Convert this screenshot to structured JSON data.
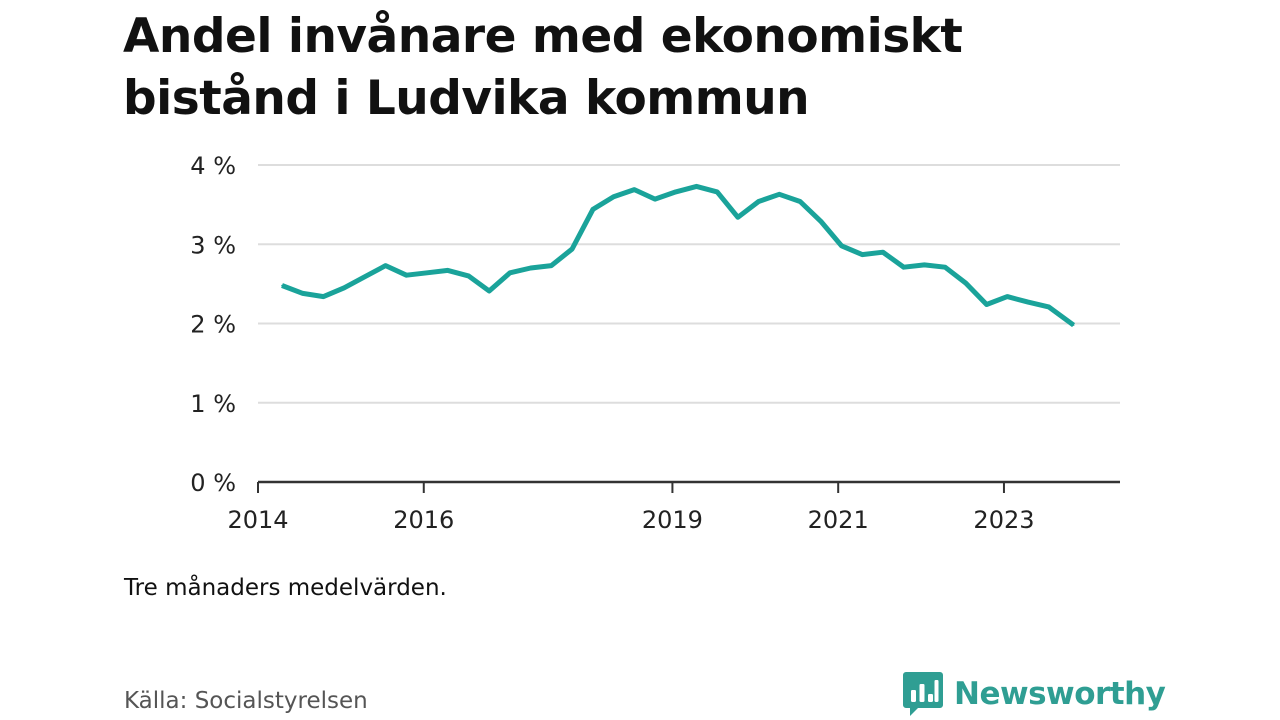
{
  "colors": {
    "line": "#1aa39a",
    "brand": "#2f9e93",
    "grid": "#dddddd",
    "axis": "#333333",
    "text": "#111111",
    "muted": "#555555"
  },
  "chart_data": {
    "type": "line",
    "title": "Andel invånare med ekonomiskt bistånd i Ludvika kommun",
    "xlabel": "",
    "ylabel": "",
    "ylim": [
      0,
      4
    ],
    "xlim": [
      2014.0,
      2024.4
    ],
    "grid": true,
    "y_ticks": [
      {
        "value": 0,
        "label": "0 %"
      },
      {
        "value": 1,
        "label": "1 %"
      },
      {
        "value": 2,
        "label": "2 %"
      },
      {
        "value": 3,
        "label": "3 %"
      },
      {
        "value": 4,
        "label": "4 %"
      }
    ],
    "x_ticks": [
      {
        "value": 2014,
        "label": "2014"
      },
      {
        "value": 2016,
        "label": "2016"
      },
      {
        "value": 2019,
        "label": "2019"
      },
      {
        "value": 2021,
        "label": "2021"
      },
      {
        "value": 2023,
        "label": "2023"
      }
    ],
    "series": [
      {
        "color": "#1aa39a",
        "points": [
          [
            2014.29,
            2.48
          ],
          [
            2014.54,
            2.38
          ],
          [
            2014.79,
            2.34
          ],
          [
            2015.04,
            2.45
          ],
          [
            2015.29,
            2.59
          ],
          [
            2015.54,
            2.73
          ],
          [
            2015.79,
            2.61
          ],
          [
            2016.04,
            2.64
          ],
          [
            2016.29,
            2.67
          ],
          [
            2016.54,
            2.6
          ],
          [
            2016.79,
            2.41
          ],
          [
            2017.04,
            2.64
          ],
          [
            2017.29,
            2.7
          ],
          [
            2017.54,
            2.73
          ],
          [
            2017.79,
            2.94
          ],
          [
            2018.04,
            3.44
          ],
          [
            2018.29,
            3.6
          ],
          [
            2018.54,
            3.69
          ],
          [
            2018.79,
            3.57
          ],
          [
            2019.04,
            3.66
          ],
          [
            2019.29,
            3.73
          ],
          [
            2019.54,
            3.66
          ],
          [
            2019.79,
            3.34
          ],
          [
            2020.04,
            3.54
          ],
          [
            2020.29,
            3.63
          ],
          [
            2020.54,
            3.54
          ],
          [
            2020.79,
            3.29
          ],
          [
            2021.04,
            2.98
          ],
          [
            2021.29,
            2.87
          ],
          [
            2021.54,
            2.9
          ],
          [
            2021.79,
            2.71
          ],
          [
            2022.04,
            2.74
          ],
          [
            2022.29,
            2.71
          ],
          [
            2022.54,
            2.51
          ],
          [
            2022.79,
            2.24
          ],
          [
            2023.04,
            2.34
          ],
          [
            2023.29,
            2.27
          ],
          [
            2023.54,
            2.21
          ],
          [
            2023.84,
            1.98
          ]
        ]
      }
    ]
  },
  "note": "Tre månaders medelvärden.",
  "source": "Källa: Socialstyrelsen",
  "brand": {
    "name": "Newsworthy",
    "logo_icon": "bar-chart-speech-bubble-icon"
  }
}
